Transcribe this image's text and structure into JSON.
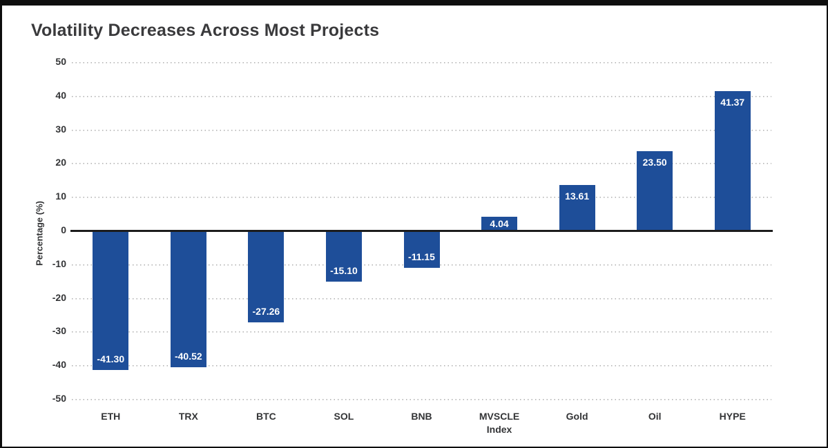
{
  "title": "Volatility Decreases Across Most Projects",
  "chart_data": {
    "type": "bar",
    "title": "Volatility Decreases Across Most Projects",
    "categories": [
      "ETH",
      "TRX",
      "BTC",
      "SOL",
      "BNB",
      "MVSCLE\nIndex",
      "Gold",
      "Oil",
      "HYPE"
    ],
    "values": [
      -41.3,
      -40.52,
      -27.26,
      -15.1,
      -11.15,
      4.04,
      13.61,
      23.5,
      41.37
    ],
    "value_labels": [
      "-41.30",
      "-40.52",
      "-27.26",
      "-15.10",
      "-11.15",
      "4.04",
      "13.61",
      "23.50",
      "41.37"
    ],
    "xlabel": "",
    "ylabel": "Percentage (%)",
    "ylim": [
      -50,
      50
    ],
    "yticks": [
      50,
      40,
      30,
      20,
      10,
      0,
      -10,
      -20,
      -30,
      -40,
      -50
    ],
    "grid": "horizontal-dotted",
    "legend": "none",
    "colors": {
      "bar": "#1e4e99",
      "value_label": "#ffffff",
      "grid": "#b2b2b2",
      "zero_axis": "#1c1c1c",
      "title_text": "#3a3a3c",
      "tick_text": "#333436",
      "frame": "#0e0e0e",
      "background": "#ffffff"
    }
  }
}
